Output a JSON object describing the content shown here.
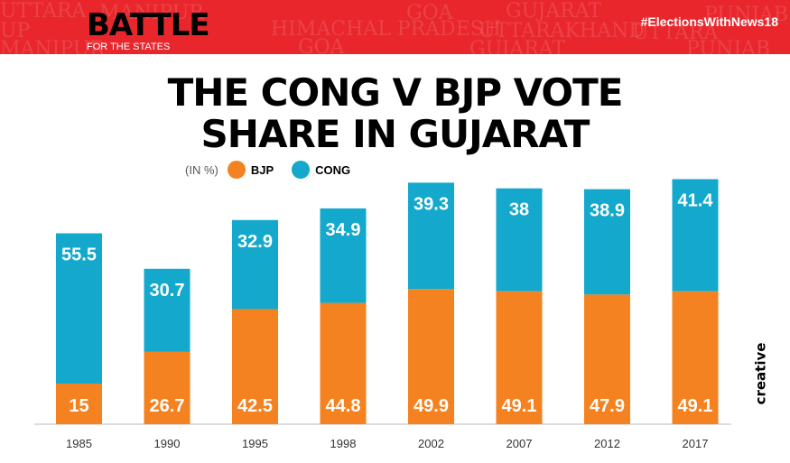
{
  "header": {
    "logo_text": "BATTLE FOR THE STATES",
    "background_words": [
      "UTTARA",
      "MANIPUR",
      "GOA",
      "GUJARAT",
      "PUNJAB",
      "UP",
      "HIMACHAL PRADESH",
      "UTTARAKHAND"
    ],
    "hashtag": "#ElectionsWithNews18",
    "brand_color": "#e8262c"
  },
  "credit": "creative",
  "chart_data": {
    "type": "bar",
    "stacked": true,
    "title": "THE CONG V BJP VOTE SHARE IN GUJARAT",
    "unit_label": "(IN %)",
    "categories": [
      "1985",
      "1990",
      "1995",
      "1998",
      "2002",
      "2007",
      "2012",
      "2017"
    ],
    "series": [
      {
        "name": "BJP",
        "color": "#f58220",
        "icon": "lotus-icon",
        "values": [
          15,
          26.7,
          42.5,
          44.8,
          49.9,
          49.1,
          47.9,
          49.1
        ]
      },
      {
        "name": "CONG",
        "color": "#13a8cc",
        "icon": "hand-icon",
        "values": [
          55.5,
          30.7,
          32.9,
          34.9,
          39.3,
          38,
          38.9,
          41.4
        ]
      }
    ],
    "ylim": [
      0,
      95
    ],
    "grid": false,
    "legend": "top-left",
    "data_labels": true
  }
}
